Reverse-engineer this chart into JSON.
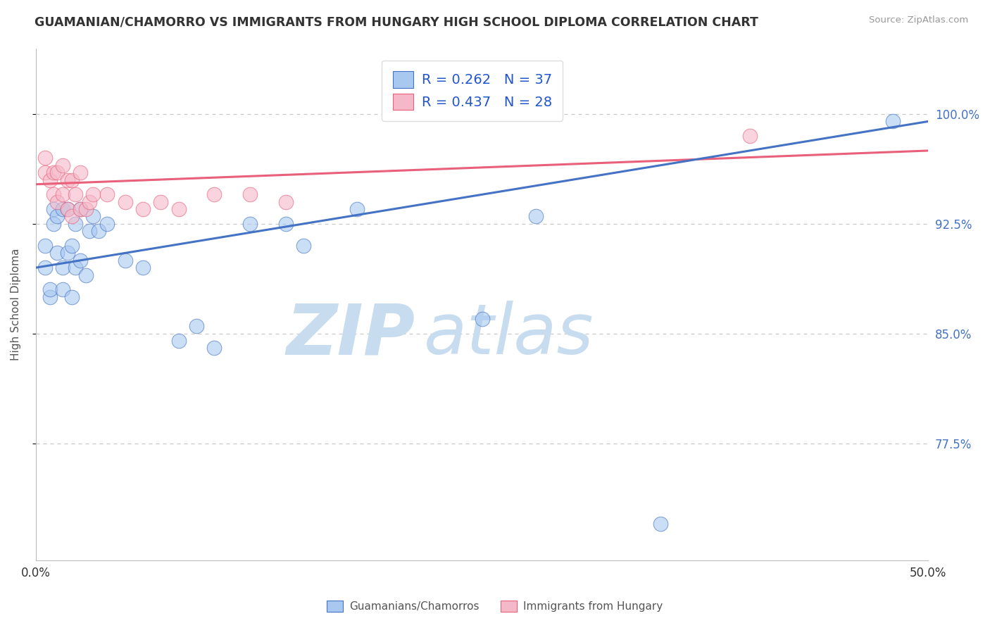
{
  "title": "GUAMANIAN/CHAMORRO VS IMMIGRANTS FROM HUNGARY HIGH SCHOOL DIPLOMA CORRELATION CHART",
  "source": "Source: ZipAtlas.com",
  "ylabel": "High School Diploma",
  "ytick_labels": [
    "77.5%",
    "85.0%",
    "92.5%",
    "100.0%"
  ],
  "ytick_values": [
    0.775,
    0.85,
    0.925,
    1.0
  ],
  "xmin": 0.0,
  "xmax": 0.5,
  "ymin": 0.695,
  "ymax": 1.045,
  "blue_R": 0.262,
  "blue_N": 37,
  "pink_R": 0.437,
  "pink_N": 28,
  "blue_color": "#A8C8F0",
  "pink_color": "#F5B8C8",
  "blue_line_color": "#4472C4",
  "pink_line_color": "#E8607A",
  "legend_R_color": "#2255CC",
  "watermark_zip_color": "#C8DCF0",
  "watermark_atlas_color": "#C8DCF0",
  "blue_scatter_x": [
    0.005,
    0.005,
    0.008,
    0.008,
    0.01,
    0.01,
    0.012,
    0.012,
    0.015,
    0.015,
    0.015,
    0.018,
    0.018,
    0.02,
    0.02,
    0.022,
    0.022,
    0.025,
    0.025,
    0.028,
    0.03,
    0.032,
    0.035,
    0.04,
    0.05,
    0.06,
    0.08,
    0.09,
    0.1,
    0.12,
    0.14,
    0.15,
    0.18,
    0.25,
    0.28,
    0.35,
    0.48
  ],
  "blue_scatter_y": [
    0.895,
    0.91,
    0.875,
    0.88,
    0.925,
    0.935,
    0.905,
    0.93,
    0.88,
    0.895,
    0.935,
    0.905,
    0.935,
    0.875,
    0.91,
    0.895,
    0.925,
    0.9,
    0.935,
    0.89,
    0.92,
    0.93,
    0.92,
    0.925,
    0.9,
    0.895,
    0.845,
    0.855,
    0.84,
    0.925,
    0.925,
    0.91,
    0.935,
    0.86,
    0.93,
    0.72,
    0.995
  ],
  "pink_scatter_x": [
    0.005,
    0.005,
    0.008,
    0.01,
    0.01,
    0.012,
    0.012,
    0.015,
    0.015,
    0.018,
    0.018,
    0.02,
    0.02,
    0.022,
    0.025,
    0.025,
    0.028,
    0.03,
    0.032,
    0.04,
    0.05,
    0.06,
    0.07,
    0.08,
    0.1,
    0.12,
    0.14,
    0.4
  ],
  "pink_scatter_y": [
    0.96,
    0.97,
    0.955,
    0.945,
    0.96,
    0.94,
    0.96,
    0.945,
    0.965,
    0.935,
    0.955,
    0.93,
    0.955,
    0.945,
    0.935,
    0.96,
    0.935,
    0.94,
    0.945,
    0.945,
    0.94,
    0.935,
    0.94,
    0.935,
    0.945,
    0.945,
    0.94,
    0.985
  ],
  "blue_trendline_x": [
    0.0,
    0.5
  ],
  "blue_trendline_y": [
    0.895,
    0.995
  ],
  "pink_trendline_x": [
    0.0,
    0.5
  ],
  "pink_trendline_y": [
    0.952,
    0.975
  ],
  "circle_size": 220,
  "background_color": "#FFFFFF",
  "grid_color": "#C8C8C8",
  "title_fontsize": 12.5,
  "axis_label_fontsize": 11
}
